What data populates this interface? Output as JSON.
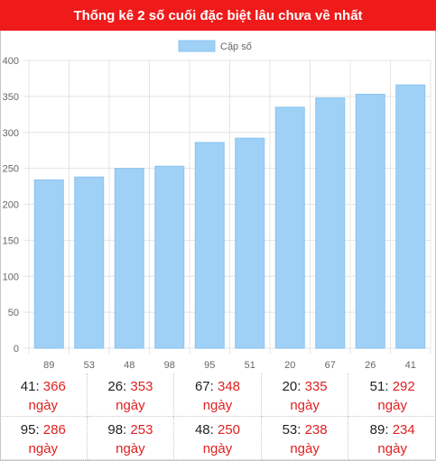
{
  "header": {
    "title": "Thống kê 2 số cuối đặc biệt lâu chưa về nhất"
  },
  "chart_data": {
    "type": "bar",
    "categories": [
      "89",
      "53",
      "48",
      "98",
      "95",
      "51",
      "20",
      "67",
      "26",
      "41"
    ],
    "series": [
      {
        "name": "Cặp số",
        "values": [
          234,
          238,
          250,
          253,
          286,
          292,
          335,
          348,
          353,
          366
        ]
      }
    ],
    "ylim": [
      0,
      400
    ],
    "yticks": [
      0,
      50,
      100,
      150,
      200,
      250,
      300,
      350,
      400
    ],
    "legend": "top-center",
    "grid": true,
    "colors": {
      "bar": "#9fd0f5",
      "bar_stroke": "#8cc4f0",
      "grid": "#e4e4e4",
      "header_bg": "#ef1a1a",
      "value_text": "#e02020"
    }
  },
  "stats": [
    {
      "pair": "41",
      "days": "366",
      "unit": "ngày"
    },
    {
      "pair": "26",
      "days": "353",
      "unit": "ngày"
    },
    {
      "pair": "67",
      "days": "348",
      "unit": "ngày"
    },
    {
      "pair": "20",
      "days": "335",
      "unit": "ngày"
    },
    {
      "pair": "51",
      "days": "292",
      "unit": "ngày"
    },
    {
      "pair": "95",
      "days": "286",
      "unit": "ngày"
    },
    {
      "pair": "98",
      "days": "253",
      "unit": "ngày"
    },
    {
      "pair": "48",
      "days": "250",
      "unit": "ngày"
    },
    {
      "pair": "53",
      "days": "238",
      "unit": "ngày"
    },
    {
      "pair": "89",
      "days": "234",
      "unit": "ngày"
    }
  ]
}
